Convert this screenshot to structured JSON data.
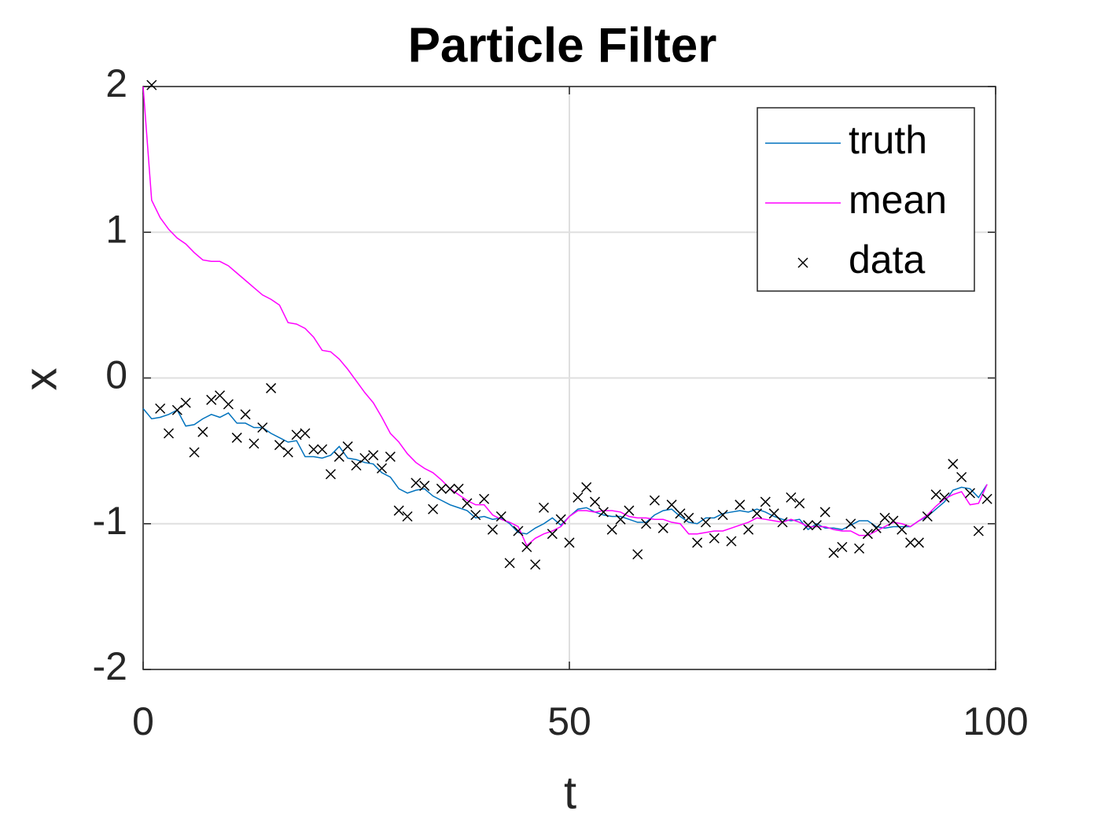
{
  "chart_data": {
    "type": "line",
    "title": "Particle Filter",
    "x_label": "t",
    "y_label": "x",
    "x": [
      0,
      1,
      2,
      3,
      4,
      5,
      6,
      7,
      8,
      9,
      10,
      11,
      12,
      13,
      14,
      15,
      16,
      17,
      18,
      19,
      20,
      21,
      22,
      23,
      24,
      25,
      26,
      27,
      28,
      29,
      30,
      31,
      32,
      33,
      34,
      35,
      36,
      37,
      38,
      39,
      40,
      41,
      42,
      43,
      44,
      45,
      46,
      47,
      48,
      49,
      50,
      51,
      52,
      53,
      54,
      55,
      56,
      57,
      58,
      59,
      60,
      61,
      62,
      63,
      64,
      65,
      66,
      67,
      68,
      69,
      70,
      71,
      72,
      73,
      74,
      75,
      76,
      77,
      78,
      79,
      80,
      81,
      82,
      83,
      84,
      85,
      86,
      87,
      88,
      89,
      90,
      91,
      92,
      93,
      94,
      95,
      96,
      97,
      98,
      99
    ],
    "series": [
      {
        "name": "truth",
        "color": "#0072bd",
        "mode": "lines",
        "values": [
          -0.21,
          -0.28,
          -0.27,
          -0.25,
          -0.22,
          -0.33,
          -0.32,
          -0.28,
          -0.25,
          -0.27,
          -0.24,
          -0.31,
          -0.31,
          -0.34,
          -0.34,
          -0.38,
          -0.41,
          -0.44,
          -0.43,
          -0.54,
          -0.54,
          -0.55,
          -0.53,
          -0.47,
          -0.55,
          -0.56,
          -0.58,
          -0.59,
          -0.65,
          -0.68,
          -0.76,
          -0.79,
          -0.77,
          -0.76,
          -0.81,
          -0.84,
          -0.87,
          -0.89,
          -0.91,
          -0.96,
          -0.95,
          -0.97,
          -0.96,
          -1.0,
          -1.06,
          -1.07,
          -1.03,
          -1.0,
          -0.96,
          -1.01,
          -0.95,
          -0.9,
          -0.89,
          -0.92,
          -0.94,
          -0.95,
          -0.95,
          -0.97,
          -0.99,
          -0.99,
          -0.94,
          -0.91,
          -0.9,
          -0.95,
          -0.99,
          -1.0,
          -0.96,
          -0.96,
          -0.93,
          -0.92,
          -0.91,
          -0.92,
          -0.9,
          -0.92,
          -0.95,
          -0.97,
          -0.98,
          -0.97,
          -1.04,
          -1.0,
          -1.03,
          -1.03,
          -1.04,
          -1.01,
          -0.98,
          -0.98,
          -1.02,
          -1.03,
          -1.02,
          -1.02,
          -1.02,
          -0.98,
          -0.95,
          -0.9,
          -0.85,
          -0.77,
          -0.75,
          -0.76,
          -0.82,
          -0.73
        ]
      },
      {
        "name": "mean",
        "color": "#ff00ff",
        "mode": "lines",
        "values": [
          2.0,
          1.22,
          1.1,
          1.02,
          0.96,
          0.92,
          0.86,
          0.81,
          0.8,
          0.8,
          0.77,
          0.72,
          0.67,
          0.62,
          0.57,
          0.54,
          0.5,
          0.38,
          0.37,
          0.34,
          0.28,
          0.19,
          0.18,
          0.13,
          0.06,
          -0.02,
          -0.1,
          -0.17,
          -0.27,
          -0.38,
          -0.44,
          -0.52,
          -0.58,
          -0.62,
          -0.65,
          -0.7,
          -0.76,
          -0.8,
          -0.84,
          -0.87,
          -0.87,
          -0.94,
          -0.97,
          -0.99,
          -1.02,
          -1.15,
          -1.1,
          -1.07,
          -1.05,
          -1.02,
          -0.95,
          -0.91,
          -0.91,
          -0.92,
          -0.91,
          -0.91,
          -0.92,
          -0.95,
          -0.96,
          -0.96,
          -0.97,
          -0.97,
          -0.99,
          -1.0,
          -1.07,
          -1.07,
          -1.06,
          -1.05,
          -1.05,
          -1.03,
          -1.01,
          -0.99,
          -0.96,
          -0.97,
          -0.98,
          -0.99,
          -0.97,
          -0.99,
          -1.02,
          -1.02,
          -1.02,
          -1.04,
          -1.05,
          -1.05,
          -1.08,
          -1.08,
          -1.05,
          -1.02,
          -0.99,
          -1.0,
          -1.02,
          -0.98,
          -0.94,
          -0.88,
          -0.83,
          -0.8,
          -0.78,
          -0.87,
          -0.86,
          -0.73
        ]
      },
      {
        "name": "data",
        "color": "#000000",
        "mode": "markers",
        "values": [
          null,
          2.01,
          -0.21,
          -0.38,
          -0.22,
          -0.17,
          -0.51,
          -0.37,
          -0.15,
          -0.12,
          -0.18,
          -0.41,
          -0.25,
          -0.45,
          -0.34,
          -0.07,
          -0.46,
          -0.51,
          -0.39,
          -0.38,
          -0.49,
          -0.49,
          -0.66,
          -0.54,
          -0.47,
          -0.6,
          -0.55,
          -0.53,
          -0.62,
          -0.54,
          -0.91,
          -0.95,
          -0.72,
          -0.74,
          -0.9,
          -0.76,
          -0.76,
          -0.76,
          -0.86,
          -0.94,
          -0.83,
          -1.04,
          -0.95,
          -1.27,
          -1.05,
          -1.16,
          -1.28,
          -0.89,
          -1.07,
          -0.97,
          -1.13,
          -0.82,
          -0.75,
          -0.85,
          -0.92,
          -1.04,
          -0.97,
          -0.91,
          -1.21,
          -1.0,
          -0.84,
          -1.03,
          -0.87,
          -0.93,
          -0.96,
          -1.13,
          -0.99,
          -1.1,
          -0.94,
          -1.12,
          -0.87,
          -1.04,
          -0.93,
          -0.85,
          -0.93,
          -0.99,
          -0.82,
          -0.86,
          -1.01,
          -1.01,
          -0.92,
          -1.2,
          -1.16,
          -1.0,
          -1.17,
          -1.07,
          -1.03,
          -0.96,
          -0.98,
          -1.04,
          -1.13,
          -1.13,
          -0.95,
          -0.8,
          -0.82,
          -0.59,
          -0.68,
          -0.79,
          -1.05,
          -0.83
        ]
      }
    ],
    "xlim": [
      0,
      100
    ],
    "xticks": [
      0,
      50,
      100
    ],
    "ylim": [
      -2,
      2
    ],
    "yticks": [
      -2,
      -1,
      0,
      1,
      2
    ],
    "grid": true,
    "legend": "top-right"
  }
}
